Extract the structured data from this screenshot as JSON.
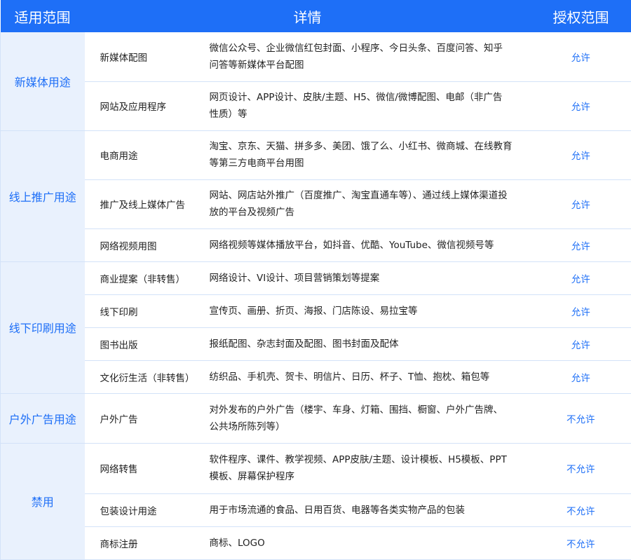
{
  "header": {
    "scope": "适用范围",
    "details": "详情",
    "authorization": "授权范围"
  },
  "groups": [
    {
      "name": "新媒体用途",
      "rows": [
        {
          "use": "新媒体配图",
          "details": [
            "微信公众号、企业微信红包封面、小程序、今日头条、百度问答、知乎",
            "问答等新媒体平台配图"
          ],
          "permission": "允许"
        },
        {
          "use": "网站及应用程序",
          "details": [
            "网页设计、APP设计、皮肤/主题、H5、微信/微博配图、电邮（非广告",
            "性质）等"
          ],
          "permission": "允许"
        }
      ]
    },
    {
      "name": "线上推广用途",
      "rows": [
        {
          "use": "电商用途",
          "details": [
            "淘宝、京东、天猫、拼多多、美团、饿了么、小红书、微商城、在线教育",
            "等第三方电商平台用图"
          ],
          "permission": "允许"
        },
        {
          "use": "推广及线上媒体广告",
          "details": [
            "网站、网店站外推广（百度推广、淘宝直通车等）、通过线上媒体渠道投",
            "放的平台及视频广告"
          ],
          "permission": "允许"
        },
        {
          "use": "网络视频用图",
          "details": [
            "网络视频等媒体播放平台，如抖音、优酷、YouTube、微信视频号等"
          ],
          "permission": "允许"
        }
      ]
    },
    {
      "name": "线下印刷用途",
      "rows": [
        {
          "use": "商业提案（非转售）",
          "details": [
            "网络设计、VI设计、项目营销策划等提案"
          ],
          "permission": "允许"
        },
        {
          "use": "线下印刷",
          "details": [
            "宣传页、画册、折页、海报、门店陈设、易拉宝等"
          ],
          "permission": "允许"
        },
        {
          "use": "图书出版",
          "details": [
            "报纸配图、杂志封面及配图、图书封面及配体"
          ],
          "permission": "允许"
        },
        {
          "use": "文化衍生活（非转售）",
          "details": [
            "纺织品、手机壳、贺卡、明信片、日历、杯子、T恤、抱枕、箱包等"
          ],
          "permission": "允许"
        }
      ]
    },
    {
      "name": "户外广告用途",
      "rows": [
        {
          "use": "户外广告",
          "details": [
            "对外发布的户外广告（楼宇、车身、灯箱、围挡、橱窗、户外广告牌、",
            "公共场所陈列等）"
          ],
          "permission": "不允许"
        }
      ]
    },
    {
      "name": "禁用",
      "rows": [
        {
          "use": "网络转售",
          "details": [
            "软件程序、课件、教学视频、APP皮肤/主题、设计模板、H5模板、PPT",
            "模板、屏幕保护程序"
          ],
          "permission": "不允许"
        },
        {
          "use": "包装设计用途",
          "details": [
            "用于市场流通的食品、日用百货、电器等各类实物产品的包装"
          ],
          "permission": "不允许"
        },
        {
          "use": "商标注册",
          "details": [
            "商标、LOGO"
          ],
          "permission": "不允许"
        }
      ]
    }
  ]
}
